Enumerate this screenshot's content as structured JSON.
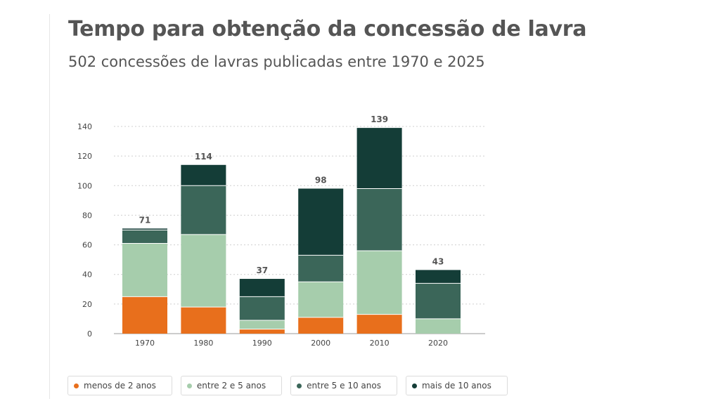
{
  "title": "Tempo para obtenção da concessão de lavra",
  "subtitle": "502 concessões de lavras publicadas entre 1970 e 2025",
  "chart_data": {
    "type": "bar",
    "stacked": true,
    "categories": [
      "1970",
      "1980",
      "1990",
      "2000",
      "2010",
      "2020"
    ],
    "series": [
      {
        "name": "menos de 2 anos",
        "color": "#e86f1c",
        "values": [
          25,
          18,
          3,
          11,
          13,
          0
        ]
      },
      {
        "name": "entre 2 e 5 anos",
        "color": "#a6cdac",
        "values": [
          36,
          49,
          6,
          24,
          43,
          10
        ]
      },
      {
        "name": "entre 5 e 10 anos",
        "color": "#3b6659",
        "values": [
          9,
          33,
          16,
          18,
          42,
          24
        ]
      },
      {
        "name": "mais de 10 anos",
        "color": "#143d37",
        "values": [
          1,
          14,
          12,
          45,
          41,
          9
        ]
      }
    ],
    "totals": [
      71,
      114,
      37,
      98,
      139,
      43
    ],
    "yticks": [
      0,
      20,
      40,
      60,
      80,
      100,
      120,
      140
    ],
    "ylim": [
      0,
      140
    ],
    "xlabel": "",
    "ylabel": "",
    "grid": true,
    "legend": "bottom"
  }
}
